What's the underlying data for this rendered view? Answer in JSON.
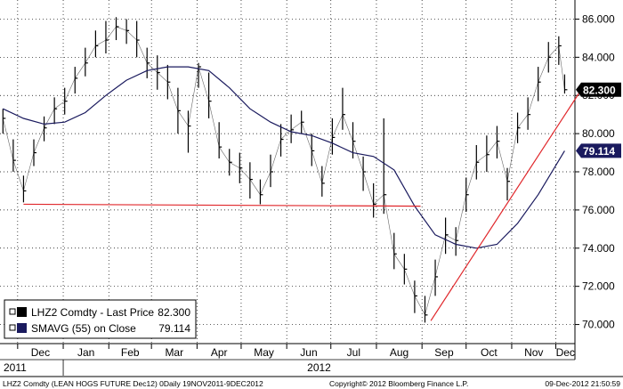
{
  "chart_data": {
    "type": "line",
    "ylim": [
      69.0,
      87.0
    ],
    "y_ticks": [
      70,
      72,
      74,
      76,
      78,
      80,
      82,
      84,
      86
    ],
    "y_tick_labels": [
      "70.000",
      "72.000",
      "74.000",
      "76.000",
      "78.000",
      "80.000",
      "82.000",
      "84.000",
      "86.000"
    ],
    "x_tick_labels": [
      "Dec",
      "Jan",
      "Feb",
      "Mar",
      "Apr",
      "May",
      "Jun",
      "Jul",
      "Aug",
      "Sep",
      "Oct",
      "Nov",
      "Dec"
    ],
    "year_labels": [
      "2011",
      "2012"
    ],
    "grid": true,
    "legend_position": "bottom-left",
    "series": [
      {
        "name": "LHZ2 Comdty - Last Price",
        "value_label": "82.300",
        "color": "#000000",
        "type": "ohlc-bars",
        "x": [
          "2011-11-21",
          "2011-11-28",
          "2011-12-05",
          "2011-12-12",
          "2011-12-19",
          "2011-12-26",
          "2012-01-02",
          "2012-01-09",
          "2012-01-16",
          "2012-01-23",
          "2012-01-30",
          "2012-02-06",
          "2012-02-13",
          "2012-02-20",
          "2012-02-27",
          "2012-03-05",
          "2012-03-12",
          "2012-03-19",
          "2012-03-26",
          "2012-04-02",
          "2012-04-09",
          "2012-04-16",
          "2012-04-23",
          "2012-04-30",
          "2012-05-07",
          "2012-05-14",
          "2012-05-21",
          "2012-05-28",
          "2012-06-04",
          "2012-06-11",
          "2012-06-18",
          "2012-06-25",
          "2012-07-02",
          "2012-07-09",
          "2012-07-16",
          "2012-07-23",
          "2012-07-30",
          "2012-08-06",
          "2012-08-13",
          "2012-08-20",
          "2012-08-27",
          "2012-09-03",
          "2012-09-10",
          "2012-09-17",
          "2012-09-24",
          "2012-10-01",
          "2012-10-08",
          "2012-10-15",
          "2012-10-22",
          "2012-10-29",
          "2012-11-05",
          "2012-11-12",
          "2012-11-19",
          "2012-11-26",
          "2012-12-03",
          "2012-12-07"
        ],
        "y": [
          80.8,
          78.6,
          77.0,
          79.0,
          80.3,
          81.3,
          81.7,
          82.9,
          83.7,
          84.6,
          84.9,
          85.6,
          85.4,
          84.9,
          83.7,
          83.2,
          82.7,
          81.2,
          80.4,
          83.5,
          81.7,
          79.3,
          78.5,
          78.2,
          77.6,
          76.8,
          78.0,
          79.7,
          80.2,
          80.6,
          79.1,
          77.4,
          79.8,
          81.0,
          79.6,
          78.0,
          76.3,
          76.8,
          73.7,
          72.9,
          71.5,
          70.5,
          72.5,
          74.7,
          74.4,
          76.8,
          78.5,
          78.9,
          79.6,
          77.5,
          80.3,
          81.0,
          82.7,
          84.0,
          84.6,
          82.3
        ],
        "range": [
          [
            80.0,
            81.3
          ],
          [
            78.0,
            79.7
          ],
          [
            76.4,
            77.8
          ],
          [
            78.3,
            79.7
          ],
          [
            79.6,
            80.9
          ],
          [
            80.5,
            81.9
          ],
          [
            81.0,
            82.4
          ],
          [
            82.1,
            83.5
          ],
          [
            83.0,
            84.5
          ],
          [
            84.0,
            85.4
          ],
          [
            84.2,
            85.9
          ],
          [
            84.9,
            86.1
          ],
          [
            84.7,
            86.0
          ],
          [
            84.0,
            85.9
          ],
          [
            82.9,
            84.5
          ],
          [
            82.3,
            84.1
          ],
          [
            81.8,
            83.6
          ],
          [
            80.0,
            82.4
          ],
          [
            79.0,
            81.2
          ],
          [
            82.4,
            83.7
          ],
          [
            80.8,
            83.2
          ],
          [
            78.7,
            80.6
          ],
          [
            77.8,
            79.2
          ],
          [
            77.4,
            79.0
          ],
          [
            76.6,
            78.5
          ],
          [
            76.3,
            77.6
          ],
          [
            77.2,
            78.9
          ],
          [
            78.8,
            80.5
          ],
          [
            79.5,
            81.0
          ],
          [
            80.0,
            81.2
          ],
          [
            78.3,
            80.0
          ],
          [
            76.7,
            78.3
          ],
          [
            78.9,
            80.8
          ],
          [
            80.2,
            82.4
          ],
          [
            78.7,
            80.6
          ],
          [
            77.0,
            78.8
          ],
          [
            75.6,
            77.4
          ],
          [
            75.8,
            80.8
          ],
          [
            72.9,
            74.8
          ],
          [
            72.1,
            73.7
          ],
          [
            70.6,
            72.3
          ],
          [
            70.1,
            71.5
          ],
          [
            71.5,
            73.4
          ],
          [
            73.7,
            75.6
          ],
          [
            73.6,
            75.1
          ],
          [
            75.9,
            77.7
          ],
          [
            77.6,
            79.4
          ],
          [
            78.0,
            79.9
          ],
          [
            78.7,
            80.4
          ],
          [
            76.5,
            78.2
          ],
          [
            79.5,
            81.1
          ],
          [
            80.2,
            81.9
          ],
          [
            81.7,
            83.5
          ],
          [
            83.2,
            84.8
          ],
          [
            83.6,
            85.1
          ],
          [
            82.1,
            83.1
          ]
        ]
      },
      {
        "name": "SMAVG (55) on Close",
        "value_label": "79.114",
        "color": "#1a1a5e",
        "type": "line",
        "x": [
          "2011-11-21",
          "2011-12-05",
          "2011-12-19",
          "2012-01-02",
          "2012-01-16",
          "2012-01-30",
          "2012-02-13",
          "2012-02-27",
          "2012-03-12",
          "2012-03-26",
          "2012-04-09",
          "2012-04-23",
          "2012-05-07",
          "2012-05-21",
          "2012-06-04",
          "2012-06-18",
          "2012-07-02",
          "2012-07-16",
          "2012-07-30",
          "2012-08-13",
          "2012-08-27",
          "2012-09-10",
          "2012-09-24",
          "2012-10-08",
          "2012-10-22",
          "2012-11-05",
          "2012-11-19",
          "2012-12-07"
        ],
        "y": [
          81.3,
          80.8,
          80.5,
          80.6,
          81.1,
          82.0,
          82.8,
          83.3,
          83.5,
          83.5,
          83.3,
          82.4,
          81.3,
          80.6,
          80.1,
          79.9,
          79.5,
          79.0,
          78.8,
          78.1,
          76.2,
          74.7,
          74.2,
          74.0,
          74.2,
          75.3,
          76.8,
          79.1
        ]
      }
    ],
    "annotations": [
      {
        "type": "trendline",
        "color": "#e0262a",
        "x": [
          "2011-12-05",
          "2012-08-31"
        ],
        "y": [
          76.3,
          76.2
        ]
      },
      {
        "type": "trendline",
        "color": "#e0262a",
        "x": [
          "2012-09-07",
          "2012-12-20"
        ],
        "y": [
          70.2,
          82.5
        ]
      }
    ]
  },
  "legend": {
    "items": [
      {
        "name": "LHZ2 Comdty - Last Price",
        "value": "82.300",
        "color": "#000000"
      },
      {
        "name": "SMAVG (55) on Close",
        "value": "79.114",
        "color": "#1a1a5e"
      }
    ]
  },
  "badges": {
    "last_price": {
      "text": "82.300",
      "bg": "#000000",
      "fg": "#ffffff"
    },
    "smavg": {
      "text": "79.114",
      "bg": "#1a1a5e",
      "fg": "#ffffff"
    }
  },
  "footer": {
    "left": "LHZ2 Comdty (LEAN HOGS FUTURE  Dec12) 0Daily 19NOV2011-9DEC2012",
    "center": "Copyright© 2012 Bloomberg Finance L.P.",
    "right": "09-Dec-2012 21:50:59"
  }
}
